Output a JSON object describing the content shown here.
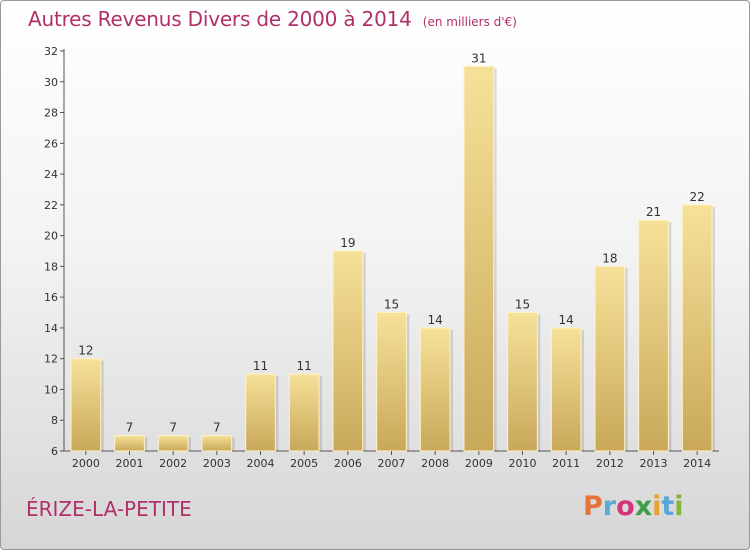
{
  "chart_data": {
    "type": "bar",
    "title": "Autres Revenus Divers de 2000 à 2014",
    "subtitle": "(en milliers d'€)",
    "categories": [
      "2000",
      "2001",
      "2002",
      "2003",
      "2004",
      "2005",
      "2006",
      "2007",
      "2008",
      "2009",
      "2010",
      "2011",
      "2012",
      "2013",
      "2014"
    ],
    "values": [
      12,
      7,
      7,
      7,
      11,
      11,
      19,
      15,
      14,
      31,
      15,
      14,
      18,
      21,
      22
    ],
    "data_labels": [
      "12",
      "7",
      "7",
      "7",
      "11",
      "11",
      "19",
      "15",
      "14",
      "31",
      "15",
      "14",
      "18",
      "21",
      "22"
    ],
    "ylim": [
      6,
      32
    ],
    "yticks": [
      "6",
      "8",
      "10",
      "12",
      "14",
      "16",
      "18",
      "20",
      "22",
      "24",
      "26",
      "28",
      "30",
      "32"
    ],
    "grid": false,
    "bar_color": "#e9cf7f"
  },
  "footer": {
    "place_name": "ÉRIZE-LA-PETITE",
    "logo_text": "Proxiti",
    "logo_colors": [
      "#e6743a",
      "#58a8d8",
      "#d6347a",
      "#3f9e4a",
      "#e6a131",
      "#59a5d7",
      "#84b63c"
    ]
  }
}
